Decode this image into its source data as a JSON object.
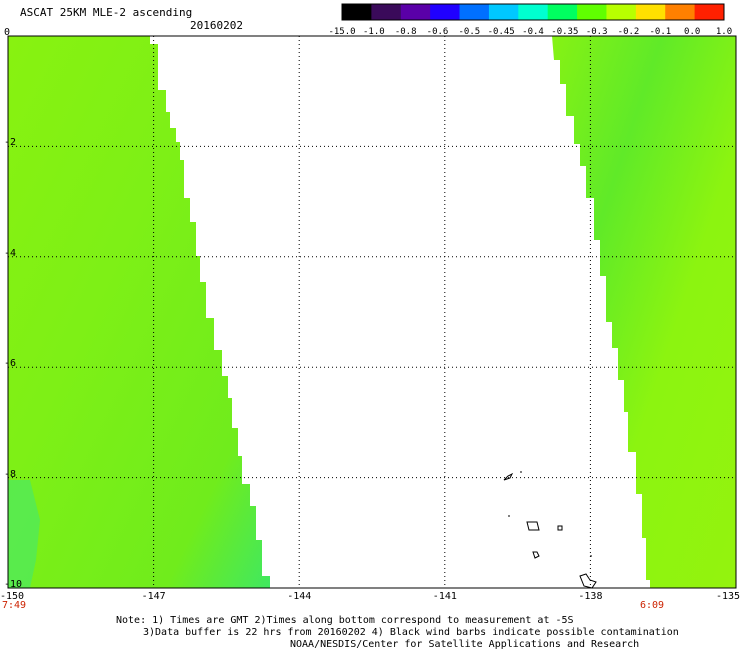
{
  "header": {
    "title": "ASCAT 25KM MLE-2 ascending",
    "date": "20160202"
  },
  "colorbar": {
    "labels": [
      "-15.0",
      "-1.0",
      "-0.8",
      "-0.6",
      "-0.5",
      "-0.45",
      "-0.4",
      "-0.35",
      "-0.3",
      "-0.2",
      "-0.1",
      "0.0",
      "1.0"
    ],
    "colors": [
      "#000000",
      "#3a0a5a",
      "#5a00a8",
      "#2000ff",
      "#0070ff",
      "#00c8ff",
      "#00ffd0",
      "#00ff60",
      "#60ff00",
      "#b8ff00",
      "#ffe000",
      "#ff8000",
      "#ff2000"
    ]
  },
  "map": {
    "lon_range": [
      -150,
      -135
    ],
    "lat_range": [
      -10,
      0
    ],
    "x_ticks": [
      "-150",
      "-147",
      "-144",
      "-141",
      "-138",
      "-135"
    ],
    "y_ticks": [
      "0",
      "-2",
      "-4",
      "-6",
      "-8",
      "-10"
    ],
    "left_time": "7:49",
    "right_time": "6:09",
    "fill_color": "#86f312",
    "swath_colors": [
      "#7cf014",
      "#8cf510",
      "#6eec1c",
      "#92f20e"
    ]
  },
  "notes": {
    "line1": "Note: 1) Times are GMT 2)Times along bottom correspond to measurement at -5S",
    "line2": "3)Data buffer is 22 hrs from 20160202 4) Black wind barbs indicate possible contamination",
    "line3": "NOAA/NESDIS/Center for Satellite Applications and Research"
  }
}
